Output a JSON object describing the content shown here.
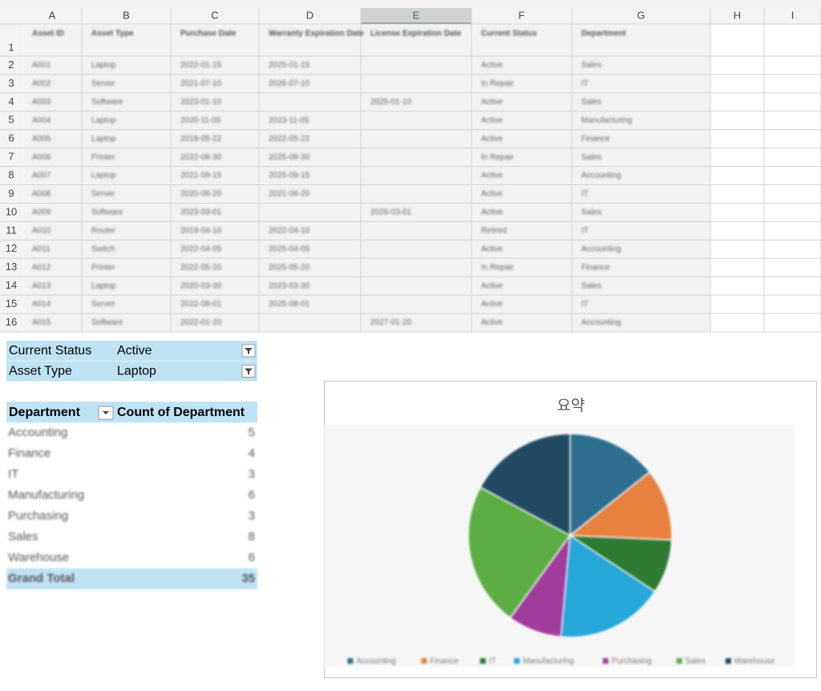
{
  "sheet": {
    "columns": [
      "A",
      "B",
      "C",
      "D",
      "E",
      "F",
      "G",
      "H",
      "I"
    ],
    "row_numbers": [
      "1",
      "2",
      "3",
      "4",
      "5",
      "6",
      "7",
      "8",
      "9",
      "10",
      "11",
      "12",
      "13",
      "14",
      "15",
      "16"
    ],
    "header": [
      "Asset ID",
      "Asset Type",
      "Purchase Date",
      "Warranty Expiration Date",
      "License Expiration Date",
      "Current Status",
      "Department"
    ],
    "rows": [
      [
        "A001",
        "Laptop",
        "2022-01-15",
        "2025-01-15",
        "",
        "Active",
        "Sales"
      ],
      [
        "A002",
        "Server",
        "2021-07-10",
        "2026-07-10",
        "",
        "In Repair",
        "IT"
      ],
      [
        "A003",
        "Software",
        "2023-01-10",
        "",
        "2025-01-10",
        "Active",
        "Sales"
      ],
      [
        "A004",
        "Laptop",
        "2020-11-05",
        "2023-11-05",
        "",
        "Active",
        "Manufacturing"
      ],
      [
        "A005",
        "Laptop",
        "2019-05-22",
        "2022-05-22",
        "",
        "Active",
        "Finance"
      ],
      [
        "A006",
        "Printer",
        "2022-08-30",
        "2025-08-30",
        "",
        "In Repair",
        "Sales"
      ],
      [
        "A007",
        "Laptop",
        "2021-09-15",
        "2025-09-15",
        "",
        "Active",
        "Accounting"
      ],
      [
        "A008",
        "Server",
        "2020-06-20",
        "2021-06-20",
        "",
        "Active",
        "IT"
      ],
      [
        "A009",
        "Software",
        "2023-03-01",
        "",
        "2026-03-01",
        "Active",
        "Sales"
      ],
      [
        "A010",
        "Router",
        "2019-04-10",
        "2022-04-10",
        "",
        "Retired",
        "IT"
      ],
      [
        "A011",
        "Switch",
        "2022-04-05",
        "2025-04-05",
        "",
        "Active",
        "Accounting"
      ],
      [
        "A012",
        "Printer",
        "2022-05-20",
        "2025-05-20",
        "",
        "In Repair",
        "Finance"
      ],
      [
        "A013",
        "Laptop",
        "2020-03-30",
        "2023-03-30",
        "",
        "Active",
        "Sales"
      ],
      [
        "A014",
        "Server",
        "2022-08-01",
        "2025-08-01",
        "",
        "Active",
        "IT"
      ],
      [
        "A015",
        "Software",
        "2022-01-20",
        "",
        "2027-01-20",
        "Active",
        "Accounting"
      ]
    ]
  },
  "filters": [
    {
      "field": "Current Status",
      "value": "Active"
    },
    {
      "field": "Asset Type",
      "value": "Laptop"
    }
  ],
  "pivot": {
    "header": [
      "Department",
      "Count of Department"
    ],
    "total_label": "Grand Total",
    "total": 35
  },
  "chart_data": {
    "type": "pie",
    "title": "요약",
    "categories": [
      "Accounting",
      "Finance",
      "IT",
      "Manufacturing",
      "Purchasing",
      "Sales",
      "Warehouse"
    ],
    "values": [
      5,
      4,
      3,
      6,
      3,
      8,
      6
    ],
    "colors": [
      "#2e6e8e",
      "#e8803f",
      "#2e7a32",
      "#27a6d8",
      "#a03c9c",
      "#5cae44",
      "#224b63"
    ]
  }
}
